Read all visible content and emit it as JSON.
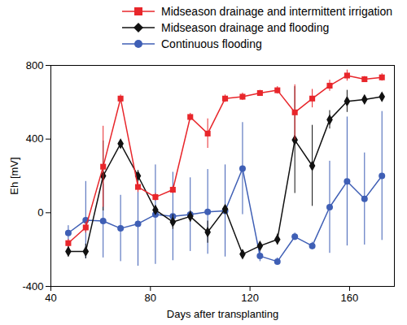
{
  "chart_data": {
    "type": "line",
    "xlabel": "Days after transplanting",
    "ylabel": "Eh [mV]",
    "x": [
      47,
      54,
      61,
      68,
      75,
      82,
      89,
      96,
      103,
      110,
      117,
      124,
      131,
      138,
      145,
      152,
      159,
      166,
      173
    ],
    "series": [
      {
        "name": "Midseason drainage and intermittent irrigation",
        "color": "#e8262b",
        "marker": "square",
        "values": [
          -165,
          -80,
          250,
          620,
          140,
          85,
          125,
          520,
          430,
          620,
          630,
          650,
          665,
          545,
          620,
          690,
          745,
          725,
          735
        ],
        "errors": [
          20,
          30,
          220,
          20,
          30,
          20,
          20,
          20,
          80,
          20,
          20,
          15,
          20,
          150,
          50,
          30,
          30,
          15,
          20
        ]
      },
      {
        "name": "Midseason drainage and flooding",
        "color": "#111111",
        "marker": "diamond",
        "values": [
          -210,
          -210,
          200,
          375,
          200,
          15,
          -50,
          -20,
          -105,
          20,
          -225,
          -180,
          -145,
          395,
          255,
          505,
          605,
          615,
          630
        ],
        "errors": [
          30,
          40,
          190,
          20,
          30,
          20,
          40,
          30,
          60,
          20,
          20,
          20,
          30,
          290,
          220,
          50,
          60,
          20,
          15
        ]
      },
      {
        "name": "Continuous flooding",
        "color": "#3f5fb5",
        "marker": "circle",
        "values": [
          -110,
          -40,
          -45,
          -85,
          -60,
          -10,
          -20,
          -10,
          5,
          10,
          240,
          -235,
          -265,
          -130,
          -180,
          30,
          170,
          75,
          200
        ],
        "errors": [
          40,
          210,
          200,
          180,
          230,
          270,
          240,
          200,
          230,
          250,
          250,
          30,
          20,
          20,
          20,
          250,
          350,
          250,
          350
        ]
      }
    ],
    "xlim": [
      40,
      178
    ],
    "ylim": [
      -400,
      800
    ],
    "xticks": [
      40,
      80,
      120,
      160
    ],
    "yticks": [
      -400,
      0,
      400,
      800
    ],
    "legend": "top",
    "grid": false
  }
}
